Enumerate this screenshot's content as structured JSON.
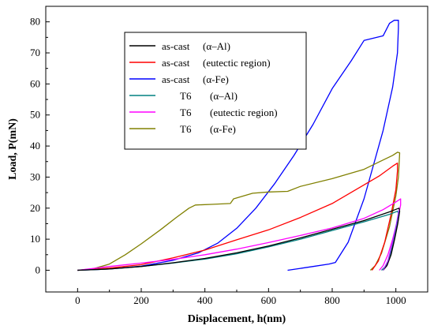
{
  "chart_data": {
    "type": "line",
    "title": "",
    "xlabel": "Displacement, h(nm)",
    "ylabel": "Load, P(mN)",
    "xlim": [
      -100,
      1100
    ],
    "ylim": [
      -7,
      85
    ],
    "x_ticks": [
      0,
      200,
      400,
      600,
      800,
      1000
    ],
    "x_tick_labels": [
      "0",
      "200",
      "400",
      "600",
      "800",
      "1000"
    ],
    "y_ticks": [
      0,
      10,
      20,
      30,
      40,
      50,
      60,
      70,
      80
    ],
    "y_tick_labels": [
      "0",
      "10",
      "20",
      "30",
      "40",
      "50",
      "60",
      "70",
      "80"
    ],
    "grid": false,
    "legend_position": "top-left",
    "legend": [
      {
        "prefix": "as-cast",
        "label": "(α–Al)",
        "color": "#000000"
      },
      {
        "prefix": "as-cast",
        "label": "(eutectic region)",
        "color": "#ff0000"
      },
      {
        "prefix": "as-cast",
        "label": "(α-Fe)",
        "color": "#0000ff"
      },
      {
        "prefix": "T6",
        "label": "(α–Al)",
        "color": "#008080"
      },
      {
        "prefix": "T6",
        "label": "(eutectic region)",
        "color": "#ff00ff"
      },
      {
        "prefix": "T6",
        "label": "(α-Fe)",
        "color": "#808000"
      }
    ],
    "series": [
      {
        "color": "#0000ff",
        "x": [
          0,
          100,
          200,
          300,
          380,
          440,
          500,
          560,
          620,
          680,
          740,
          800,
          860,
          900,
          960,
          980,
          995,
          1008,
          1008,
          1005,
          990,
          960,
          900,
          850,
          810,
          790,
          740,
          700,
          660
        ],
        "y": [
          0,
          0.4,
          1.3,
          3.2,
          5.6,
          8.7,
          13.5,
          20,
          28,
          37,
          47,
          58.5,
          67.5,
          74,
          75.5,
          79.5,
          80.5,
          80.5,
          78,
          70,
          59,
          45,
          23,
          9,
          2.5,
          2,
          1.2,
          0.6,
          0
        ]
      },
      {
        "color": "#808000",
        "x": [
          0,
          50,
          100,
          150,
          200,
          260,
          310,
          350,
          370,
          420,
          480,
          490,
          550,
          600,
          660,
          700,
          800,
          900,
          950,
          990,
          1005,
          1012,
          1008,
          1000,
          980,
          955,
          935,
          920
        ],
        "y": [
          0,
          0.5,
          2,
          5,
          8.5,
          13,
          17,
          20,
          21,
          21.2,
          21.5,
          23,
          24.8,
          25.2,
          25.4,
          27,
          29.5,
          32.5,
          35,
          37,
          38,
          37.8,
          30,
          24,
          14,
          5.5,
          1.5,
          0
        ]
      },
      {
        "color": "#ff0000",
        "x": [
          0,
          100,
          200,
          300,
          400,
          500,
          600,
          700,
          800,
          900,
          950,
          990,
          1005,
          1005,
          1000,
          985,
          965,
          945,
          925
        ],
        "y": [
          0,
          0.7,
          1.8,
          4,
          6.5,
          9.8,
          13,
          17,
          21.5,
          27.5,
          30.5,
          33.5,
          34.5,
          32,
          26,
          18,
          9,
          3,
          0
        ]
      },
      {
        "color": "#ff00ff",
        "x": [
          0,
          100,
          200,
          300,
          400,
          500,
          600,
          700,
          800,
          900,
          960,
          1000,
          1015,
          1015,
          1005,
          990,
          975,
          960,
          948
        ],
        "y": [
          0,
          1.2,
          2.3,
          3.5,
          5,
          6.8,
          8.9,
          11.2,
          13.6,
          16.7,
          19.5,
          22,
          23,
          21,
          16,
          10,
          5,
          1.5,
          0
        ]
      },
      {
        "color": "#008080",
        "x": [
          0,
          100,
          200,
          300,
          400,
          500,
          600,
          700,
          800,
          900,
          980,
          1005,
          1010,
          1002,
          992,
          982,
          970,
          955
        ],
        "y": [
          0,
          0.4,
          1.2,
          2.3,
          3.6,
          5.3,
          7.5,
          10,
          12.8,
          15.6,
          18,
          19,
          18,
          14,
          9,
          5,
          1.5,
          0
        ]
      },
      {
        "color": "#000000",
        "x": [
          0,
          100,
          200,
          300,
          400,
          500,
          600,
          700,
          800,
          900,
          980,
          1000,
          1010,
          1012,
          1006,
          996,
          985,
          972,
          960
        ],
        "y": [
          0,
          0.4,
          1.2,
          2.4,
          3.8,
          5.6,
          7.8,
          10.4,
          13.2,
          16,
          18.8,
          19.6,
          20,
          19,
          15,
          10,
          5,
          1.5,
          0
        ]
      },
      {
        "color": "#9b30ff",
        "x": [
          960,
          975,
          990,
          1002,
          1008,
          1010
        ],
        "y": [
          0,
          3,
          9,
          15,
          18.5,
          19.5
        ]
      }
    ]
  }
}
